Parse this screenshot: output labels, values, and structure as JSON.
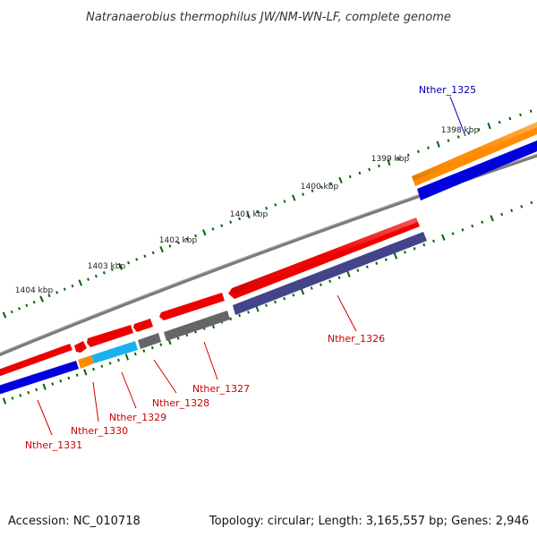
{
  "title": "Natranaerobius thermophilus JW/NM-WN-LF, complete genome",
  "accession": "Accession: NC_010718",
  "topology": "Topology: circular; Length: 3,165,557 bp; Genes: 2,946",
  "colors": {
    "backbone": "#777777",
    "red_cds": "#ee0000",
    "blue_cds": "#0000dd",
    "navy_cds": "#44448a",
    "orange": "#ff8c00",
    "cyan": "#1ab2ee",
    "gray_cds": "#666666",
    "tick": "#006600",
    "label_red": "#cc0000",
    "label_blue": "#0000aa"
  },
  "ticks": [
    "1398 kbp",
    "1399 kbp",
    "1400 kbp",
    "1401 kbp",
    "1402 kbp",
    "1403 kbp",
    "1404 kbp"
  ],
  "genes": [
    {
      "label": "Nther_1325"
    },
    {
      "label": "Nther_1326"
    },
    {
      "label": "Nther_1327"
    },
    {
      "label": "Nther_1328"
    },
    {
      "label": "Nther_1329"
    },
    {
      "label": "Nther_1330"
    },
    {
      "label": "Nther_1331"
    }
  ]
}
